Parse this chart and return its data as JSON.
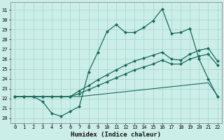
{
  "xlabel": "Humidex (Indice chaleur)",
  "bg_color": "#cceee8",
  "grid_color": "#aad8d2",
  "line_color": "#1a6b5e",
  "x_ticks": [
    0,
    1,
    2,
    3,
    4,
    5,
    6,
    7,
    8,
    9,
    10,
    11,
    12,
    13,
    14,
    15,
    16,
    17,
    18,
    19,
    20,
    21,
    22
  ],
  "y_ticks": [
    20,
    21,
    22,
    23,
    24,
    25,
    26,
    27,
    28,
    29,
    30,
    31
  ],
  "xlim": [
    -0.5,
    22.5
  ],
  "ylim": [
    19.5,
    31.8
  ],
  "series": [
    {
      "x": [
        0,
        1,
        2,
        3,
        4,
        5,
        6,
        7,
        8,
        9,
        10,
        11,
        12,
        13,
        14,
        15,
        16,
        17,
        18,
        19,
        20,
        21,
        22
      ],
      "y": [
        22.2,
        22.2,
        22.2,
        21.7,
        20.5,
        20.2,
        20.7,
        21.2,
        24.7,
        26.7,
        28.8,
        29.5,
        28.7,
        28.7,
        29.2,
        29.9,
        31.1,
        28.6,
        28.7,
        29.1,
        26.0,
        24.0,
        22.2
      ],
      "marker": "D",
      "markersize": 2.0,
      "linewidth": 0.9,
      "linestyle": "-"
    },
    {
      "x": [
        0,
        1,
        2,
        3,
        4,
        5,
        6,
        7,
        8,
        9,
        10,
        11,
        12,
        13,
        14,
        15,
        16,
        17,
        18,
        19,
        20,
        21,
        22
      ],
      "y": [
        22.2,
        22.2,
        22.2,
        22.2,
        22.2,
        22.2,
        22.2,
        22.8,
        23.3,
        23.9,
        24.4,
        24.9,
        25.4,
        25.8,
        26.1,
        26.4,
        26.7,
        26.0,
        25.9,
        26.5,
        26.9,
        27.1,
        25.8
      ],
      "marker": "D",
      "markersize": 2.0,
      "linewidth": 0.9,
      "linestyle": "-"
    },
    {
      "x": [
        0,
        1,
        2,
        3,
        4,
        5,
        6,
        7,
        8,
        9,
        10,
        11,
        12,
        13,
        14,
        15,
        16,
        17,
        18,
        19,
        20,
        21,
        22
      ],
      "y": [
        22.2,
        22.2,
        22.2,
        22.2,
        22.2,
        22.2,
        22.2,
        22.5,
        22.9,
        23.3,
        23.7,
        24.1,
        24.5,
        24.9,
        25.2,
        25.5,
        25.9,
        25.5,
        25.5,
        26.0,
        26.3,
        26.5,
        25.4
      ],
      "marker": "D",
      "markersize": 2.0,
      "linewidth": 0.9,
      "linestyle": "-"
    },
    {
      "x": [
        0,
        1,
        2,
        3,
        4,
        5,
        6,
        7,
        8,
        9,
        10,
        11,
        12,
        13,
        14,
        15,
        16,
        17,
        18,
        19,
        20,
        21,
        22
      ],
      "y": [
        22.2,
        22.2,
        22.2,
        22.2,
        22.2,
        22.2,
        22.2,
        22.2,
        22.3,
        22.4,
        22.5,
        22.6,
        22.7,
        22.8,
        22.9,
        23.0,
        23.1,
        23.2,
        23.3,
        23.4,
        23.5,
        23.6,
        22.3
      ],
      "marker": null,
      "markersize": 0,
      "linewidth": 0.8,
      "linestyle": "-"
    }
  ]
}
